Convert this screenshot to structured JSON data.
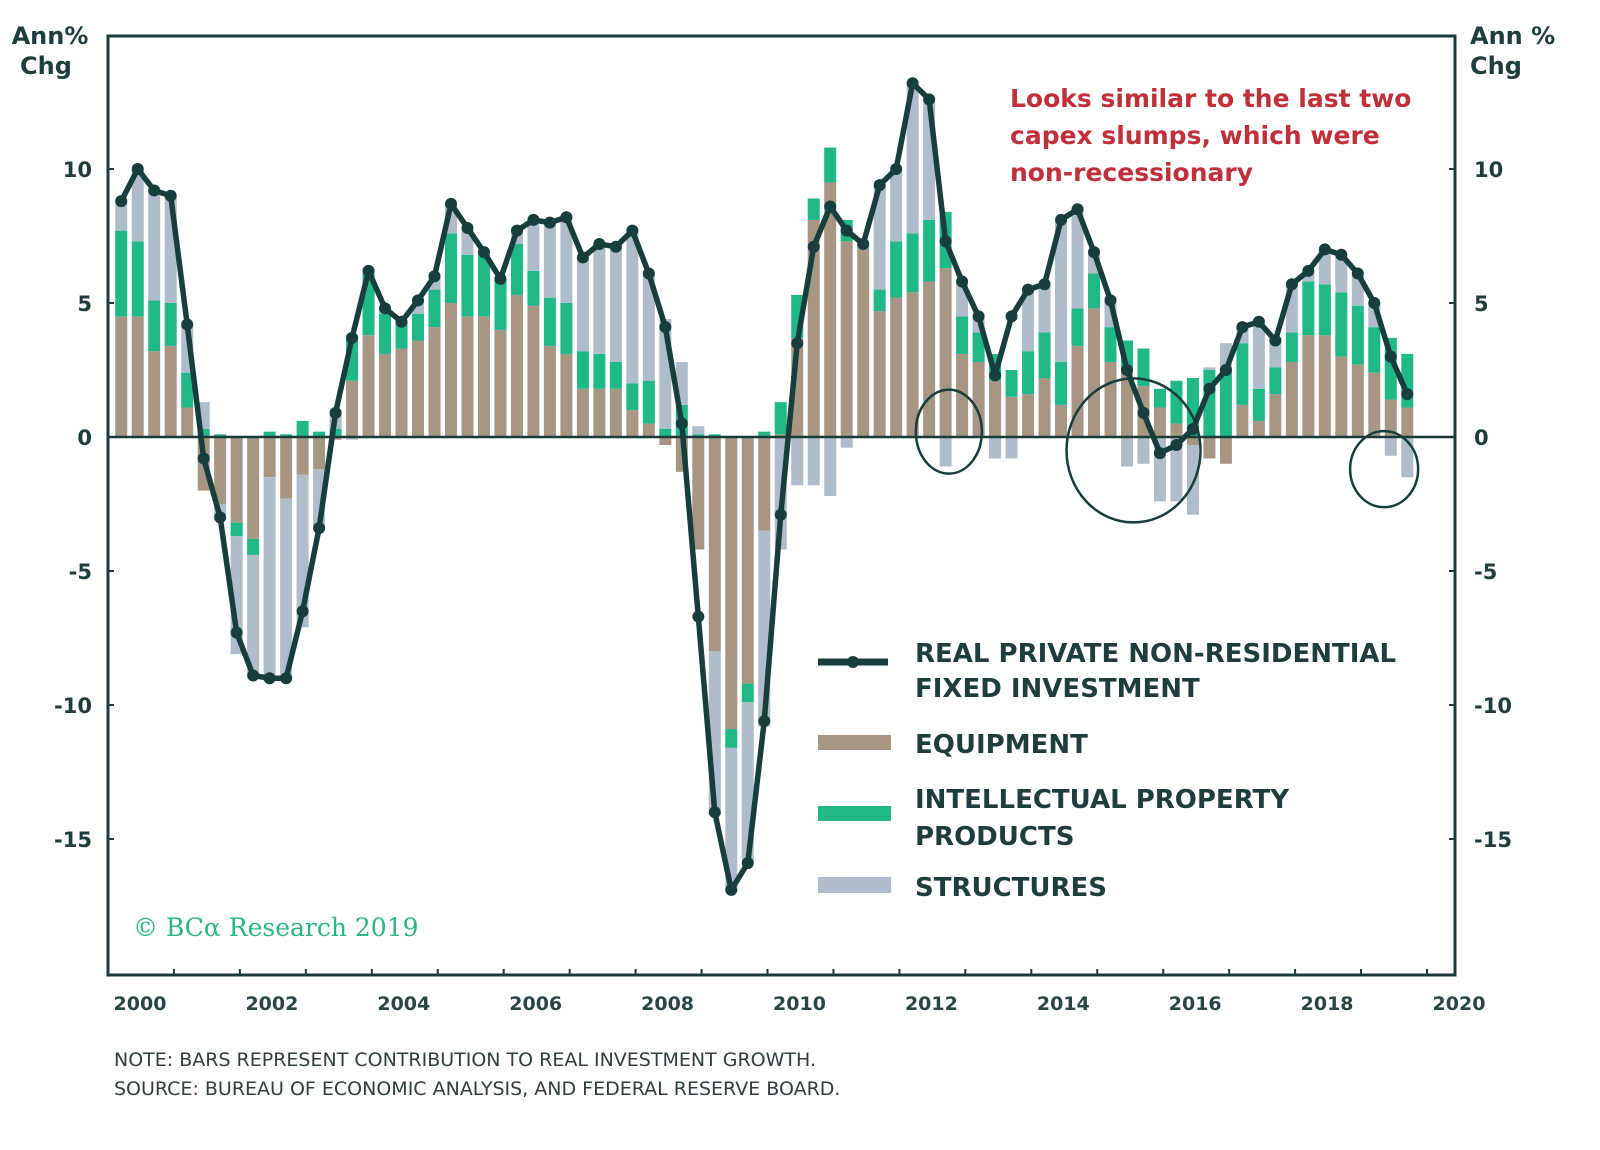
{
  "chart_data": {
    "type": "bar",
    "subtype": "stacked-bar-with-line",
    "left_axis_title": [
      "Ann%",
      "Chg"
    ],
    "right_axis_title": [
      "Ann %",
      "Chg"
    ],
    "ylim": [
      -20,
      15
    ],
    "yticks": [
      10,
      5,
      0,
      -5,
      -10,
      -15
    ],
    "xlim": [
      2000,
      2020
    ],
    "xticks": [
      "2000",
      "2002",
      "2004",
      "2006",
      "2008",
      "2010",
      "2012",
      "2014",
      "2016",
      "2018",
      "2020"
    ],
    "grid": false,
    "start_quarter": "2000Q1",
    "colors": {
      "line": "#173d3d",
      "equipment": "#a89684",
      "ipp": "#20b886",
      "structures": "#aebdc9",
      "annotation": "#c0303a",
      "credit": "#2ab583"
    },
    "series": [
      {
        "name": "REAL PRIVATE NON-RESIDENTIAL FIXED INVESTMENT",
        "type": "line",
        "values": [
          8.8,
          10.0,
          9.2,
          9.0,
          4.2,
          -0.8,
          -3.0,
          -7.3,
          -8.9,
          -9.0,
          -9.0,
          -6.5,
          -3.4,
          0.9,
          3.7,
          6.2,
          4.8,
          4.3,
          5.1,
          6.0,
          8.7,
          7.8,
          6.9,
          5.9,
          7.7,
          8.1,
          8.0,
          8.2,
          6.7,
          7.2,
          7.1,
          7.7,
          6.1,
          4.1,
          0.5,
          -6.7,
          -14.0,
          -16.9,
          -15.9,
          -10.6,
          -2.9,
          3.5,
          7.1,
          8.6,
          7.7,
          7.2,
          9.4,
          10.0,
          13.2,
          12.6,
          7.3,
          5.8,
          4.5,
          2.3,
          4.5,
          5.5,
          5.7,
          8.1,
          8.5,
          6.9,
          5.1,
          2.5,
          0.9,
          -0.6,
          -0.3,
          0.3,
          1.8,
          2.5,
          4.1,
          4.3,
          3.6,
          5.7,
          6.2,
          7.0,
          6.8,
          6.1,
          5.0,
          3.0,
          1.6
        ],
        "markers": true
      },
      {
        "name": "EQUIPMENT",
        "type": "bar",
        "values": [
          4.5,
          4.5,
          3.2,
          3.4,
          1.1,
          -2.0,
          -2.5,
          -3.2,
          -3.8,
          -1.5,
          -2.3,
          -1.4,
          -1.2,
          -0.1,
          2.1,
          3.8,
          3.1,
          3.3,
          3.6,
          4.1,
          5.0,
          4.5,
          4.5,
          4.0,
          5.3,
          4.9,
          3.4,
          3.1,
          1.8,
          1.8,
          1.8,
          1.0,
          0.5,
          -0.3,
          -1.3,
          -4.2,
          -8.0,
          -10.9,
          -9.2,
          -3.5,
          0.1,
          3.7,
          8.1,
          9.5,
          7.3,
          7.1,
          4.7,
          5.2,
          5.4,
          5.8,
          6.3,
          3.1,
          2.8,
          2.1,
          1.5,
          1.6,
          2.2,
          1.2,
          3.4,
          4.8,
          2.8,
          2.5,
          1.9,
          1.1,
          0.5,
          -0.3,
          -0.8,
          -1.0,
          1.2,
          0.6,
          1.6,
          2.8,
          3.8,
          3.8,
          3.0,
          2.7,
          2.4,
          1.4,
          1.1
        ],
        "range_note": "stacked contribution, percentage points"
      },
      {
        "name": "INTELLECTUAL PROPERTY PRODUCTS",
        "type": "bar",
        "values": [
          3.2,
          2.8,
          1.9,
          1.6,
          1.3,
          0.3,
          0.1,
          -0.5,
          -0.6,
          0.2,
          0.1,
          0.6,
          0.2,
          0.3,
          1.7,
          2.3,
          1.5,
          1.0,
          1.0,
          1.4,
          2.6,
          2.3,
          2.3,
          1.9,
          1.9,
          1.3,
          1.8,
          1.9,
          1.4,
          1.3,
          1.0,
          1.0,
          1.6,
          0.3,
          1.2,
          0.1,
          0.1,
          -0.7,
          -0.7,
          0.2,
          1.2,
          1.6,
          0.8,
          1.3,
          0.8,
          0.1,
          0.8,
          2.1,
          2.2,
          2.3,
          2.1,
          1.4,
          1.1,
          1.0,
          1.0,
          1.6,
          1.7,
          1.6,
          1.4,
          1.3,
          1.3,
          1.1,
          1.4,
          0.7,
          1.6,
          2.2,
          2.5,
          2.5,
          2.3,
          1.2,
          1.0,
          1.1,
          2.0,
          1.9,
          2.4,
          2.2,
          1.7,
          2.3,
          2.0
        ],
        "range_note": "stacked contribution, percentage points"
      },
      {
        "name": "STRUCTURES",
        "type": "bar",
        "values": [
          1.1,
          2.7,
          4.1,
          4.0,
          1.8,
          1.0,
          -0.6,
          -4.4,
          -4.5,
          -7.6,
          -6.8,
          -5.7,
          -2.2,
          0.7,
          -0.1,
          0.1,
          0.2,
          0.0,
          0.5,
          0.5,
          1.1,
          1.0,
          0.1,
          0.0,
          0.5,
          1.9,
          2.8,
          3.2,
          3.5,
          4.1,
          4.3,
          5.7,
          4.0,
          4.1,
          1.6,
          0.3,
          -6.1,
          -5.3,
          -6.0,
          -7.3,
          -4.2,
          -1.8,
          -1.8,
          -2.2,
          -0.4,
          0.0,
          3.9,
          2.7,
          5.6,
          4.5,
          -1.1,
          1.3,
          0.6,
          -0.8,
          -0.8,
          2.3,
          1.8,
          5.3,
          3.7,
          0.8,
          1.0,
          -1.1,
          -1.0,
          -2.4,
          -2.4,
          -2.6,
          0.1,
          1.0,
          0.6,
          2.5,
          1.0,
          1.8,
          0.4,
          1.3,
          1.4,
          1.2,
          0.9,
          -0.7,
          -1.5
        ],
        "range_note": "stacked contribution, percentage points"
      }
    ],
    "annotation": {
      "text_lines": [
        "Looks similar to the last two",
        "capex slumps, which were",
        "non-recessionary"
      ]
    },
    "highlight_circles": [
      {
        "label": "2012 slump",
        "center_x": 2012.75,
        "center_y": 0.2
      },
      {
        "label": "2015-16 slump",
        "center_x": 2015.55,
        "center_y": -0.5
      },
      {
        "label": "2019 slump",
        "center_x": 2019.35,
        "center_y": -1.2
      }
    ],
    "legend": {
      "placement": "bottom-right",
      "items": [
        {
          "key": "line",
          "lines": [
            "REAL PRIVATE NON-RESIDENTIAL",
            "FIXED INVESTMENT"
          ]
        },
        {
          "key": "equipment",
          "lines": [
            "EQUIPMENT"
          ]
        },
        {
          "key": "ipp",
          "lines": [
            "INTELLECTUAL PROPERTY",
            "PRODUCTS"
          ]
        },
        {
          "key": "structures",
          "lines": [
            "STRUCTURES"
          ]
        }
      ]
    },
    "credit": "© BCα Research 2019",
    "footnotes": [
      "NOTE: BARS REPRESENT CONTRIBUTION TO REAL INVESTMENT GROWTH.",
      "SOURCE: BUREAU OF ECONOMIC ANALYSIS, AND FEDERAL RESERVE BOARD."
    ]
  }
}
